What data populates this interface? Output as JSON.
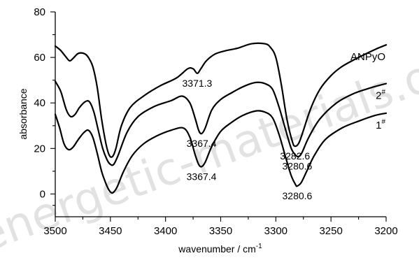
{
  "chart_data": {
    "type": "line",
    "xlabel": "wavenumber / cm",
    "xlabel_sup": "-1",
    "ylabel": "absorbance",
    "xlim": [
      3500,
      3200
    ],
    "ylim": [
      -10,
      80
    ],
    "x_ticks": [
      "3500",
      "3450",
      "3400",
      "3350",
      "3300",
      "3250",
      "3200"
    ],
    "y_ticks": [
      "0",
      "20",
      "40",
      "60",
      "80"
    ],
    "grid": false,
    "series": [
      {
        "name": "ANPyO",
        "label_main": "ANPyO",
        "label_sup": "",
        "points": [
          [
            3500,
            65
          ],
          [
            3495,
            63
          ],
          [
            3490,
            60
          ],
          [
            3487,
            58.5
          ],
          [
            3484,
            59.5
          ],
          [
            3480,
            61.5
          ],
          [
            3477,
            62
          ],
          [
            3473,
            61.5
          ],
          [
            3470,
            60
          ],
          [
            3466,
            56
          ],
          [
            3462,
            47
          ],
          [
            3458,
            33
          ],
          [
            3454,
            22
          ],
          [
            3451,
            17
          ],
          [
            3448,
            16.5
          ],
          [
            3445,
            20
          ],
          [
            3440,
            30
          ],
          [
            3432,
            38
          ],
          [
            3420,
            43
          ],
          [
            3405,
            47.5
          ],
          [
            3390,
            51
          ],
          [
            3380,
            55
          ],
          [
            3375,
            55
          ],
          [
            3371.3,
            53
          ],
          [
            3368,
            55
          ],
          [
            3363,
            58.5
          ],
          [
            3355,
            61.5
          ],
          [
            3345,
            63
          ],
          [
            3335,
            64
          ],
          [
            3322,
            66
          ],
          [
            3310,
            66
          ],
          [
            3305,
            64.5
          ],
          [
            3300,
            60
          ],
          [
            3295,
            48
          ],
          [
            3290,
            33
          ],
          [
            3285,
            23
          ],
          [
            3282.6,
            21
          ],
          [
            3279,
            22.5
          ],
          [
            3275,
            28
          ],
          [
            3268,
            38
          ],
          [
            3260,
            46
          ],
          [
            3250,
            52
          ],
          [
            3240,
            56
          ],
          [
            3225,
            60
          ],
          [
            3210,
            63.5
          ],
          [
            3200,
            65.5
          ]
        ]
      },
      {
        "name": "2#",
        "label_main": "2",
        "label_sup": "#",
        "points": [
          [
            3500,
            49.5
          ],
          [
            3495,
            45
          ],
          [
            3490,
            37
          ],
          [
            3486,
            34
          ],
          [
            3482,
            35
          ],
          [
            3478,
            38
          ],
          [
            3473,
            40.5
          ],
          [
            3469,
            40.5
          ],
          [
            3465,
            36
          ],
          [
            3461,
            28
          ],
          [
            3457,
            20
          ],
          [
            3453,
            15
          ],
          [
            3450,
            13
          ],
          [
            3447,
            13
          ],
          [
            3443,
            17
          ],
          [
            3435,
            27
          ],
          [
            3425,
            34
          ],
          [
            3410,
            38.5
          ],
          [
            3395,
            41
          ],
          [
            3385,
            43
          ],
          [
            3378,
            40
          ],
          [
            3373,
            33
          ],
          [
            3370,
            28
          ],
          [
            3367.4,
            26.5
          ],
          [
            3364,
            29
          ],
          [
            3358,
            37
          ],
          [
            3350,
            41.5
          ],
          [
            3340,
            44.5
          ],
          [
            3328,
            47.5
          ],
          [
            3318,
            49
          ],
          [
            3310,
            48.5
          ],
          [
            3303,
            46
          ],
          [
            3297,
            38
          ],
          [
            3291,
            28
          ],
          [
            3286,
            20
          ],
          [
            3282,
            17
          ],
          [
            3279,
            16.5
          ],
          [
            3276,
            18.5
          ],
          [
            3270,
            25
          ],
          [
            3260,
            33
          ],
          [
            3245,
            40
          ],
          [
            3230,
            44
          ],
          [
            3215,
            46.5
          ],
          [
            3200,
            48.5
          ]
        ]
      },
      {
        "name": "1#",
        "label_main": "1",
        "label_sup": "#",
        "points": [
          [
            3500,
            35
          ],
          [
            3496,
            29
          ],
          [
            3492,
            22
          ],
          [
            3488,
            19.5
          ],
          [
            3484,
            20.5
          ],
          [
            3479,
            24
          ],
          [
            3474,
            27
          ],
          [
            3470,
            28
          ],
          [
            3466,
            25
          ],
          [
            3462,
            18
          ],
          [
            3458,
            10
          ],
          [
            3454,
            4.5
          ],
          [
            3451,
            1.5
          ],
          [
            3448,
            0.5
          ],
          [
            3444,
            3
          ],
          [
            3438,
            10
          ],
          [
            3430,
            17
          ],
          [
            3420,
            22
          ],
          [
            3408,
            25.5
          ],
          [
            3395,
            28
          ],
          [
            3384,
            29
          ],
          [
            3378,
            25
          ],
          [
            3373,
            17
          ],
          [
            3370,
            13
          ],
          [
            3367.4,
            12
          ],
          [
            3364,
            14
          ],
          [
            3358,
            21
          ],
          [
            3350,
            27.5
          ],
          [
            3340,
            31.5
          ],
          [
            3330,
            34.5
          ],
          [
            3318,
            36.5
          ],
          [
            3310,
            36
          ],
          [
            3303,
            33.5
          ],
          [
            3297,
            26
          ],
          [
            3291,
            16
          ],
          [
            3286,
            8
          ],
          [
            3282,
            4
          ],
          [
            3280.6,
            3.5
          ],
          [
            3277,
            5
          ],
          [
            3272,
            10
          ],
          [
            3265,
            17
          ],
          [
            3255,
            24
          ],
          [
            3240,
            29
          ],
          [
            3225,
            32
          ],
          [
            3210,
            34.5
          ],
          [
            3200,
            35.5
          ]
        ]
      }
    ],
    "annotations": [
      {
        "text": "3371.3",
        "x": 3371.3,
        "y": 53
      },
      {
        "text": "3367.4",
        "x": 3367.4,
        "y": 26.5
      },
      {
        "text": "3367.4",
        "x": 3367.4,
        "y": 12
      },
      {
        "text": "3282.6",
        "x": 3282.6,
        "y": 21
      },
      {
        "text": "3280.6",
        "x": 3280.6,
        "y": 16.5
      },
      {
        "text": "3280.6",
        "x": 3280.6,
        "y": 3.5
      }
    ]
  },
  "watermark": {
    "text": "energetic-materials.org.cn 含能材料",
    "color": "#000000"
  }
}
